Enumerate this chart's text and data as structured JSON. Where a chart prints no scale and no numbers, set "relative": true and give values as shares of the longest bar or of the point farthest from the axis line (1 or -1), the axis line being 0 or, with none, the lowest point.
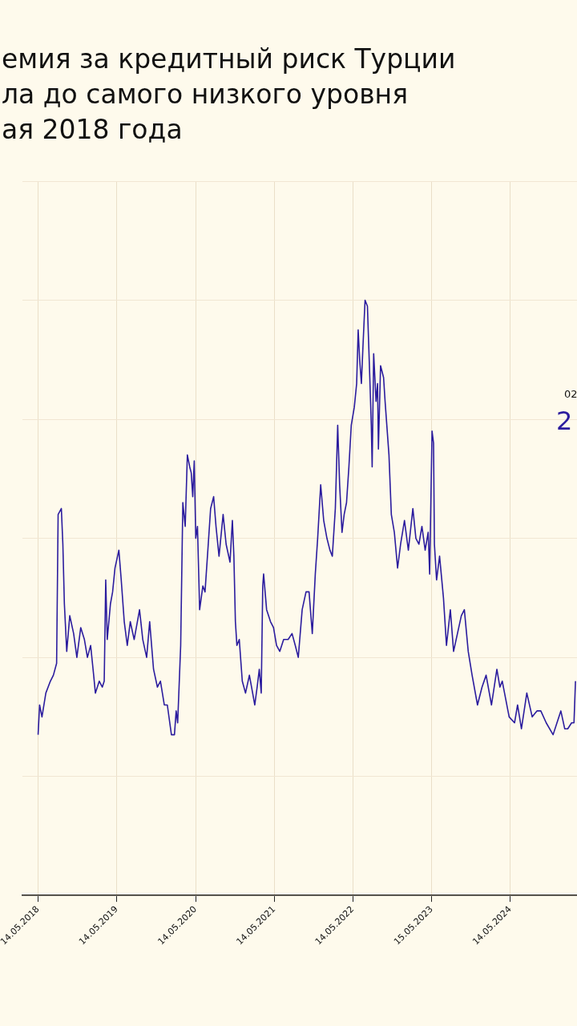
{
  "chart_data": {
    "type": "line",
    "title": "емия за кредитный риск Турции\nла до самого низкого уровня\nая 2018 года",
    "relative": true,
    "grid": true,
    "legend": false,
    "marker": "none",
    "line_style": "solid",
    "xlim": [
      "2018-03-03",
      "2025-03-20"
    ],
    "xticks": [
      {
        "value": "2018-05-14",
        "label": "14.05.2018"
      },
      {
        "value": "2019-05-14",
        "label": "14.05.2019"
      },
      {
        "value": "2020-05-14",
        "label": "14.05.2020"
      },
      {
        "value": "2021-05-14",
        "label": "14.05.2021"
      },
      {
        "value": "2022-05-14",
        "label": "14.05.2022"
      },
      {
        "value": "2023-05-15",
        "label": "15.05.2023"
      },
      {
        "value": "2024-05-14",
        "label": "14.05.2024"
      }
    ],
    "annotations": [
      "02",
      "2"
    ],
    "series": [
      {
        "color": "#2b1c9e",
        "x": [
          "2018-05-14",
          "2018-05-21",
          "2018-06-01",
          "2018-06-19",
          "2018-07-10",
          "2018-07-24",
          "2018-08-08",
          "2018-08-15",
          "2018-08-30",
          "2018-09-06",
          "2018-09-13",
          "2018-09-24",
          "2018-10-08",
          "2018-10-26",
          "2018-11-10",
          "2018-11-28",
          "2018-12-15",
          "2018-12-29",
          "2019-01-13",
          "2019-01-27",
          "2019-02-04",
          "2019-02-22",
          "2019-03-08",
          "2019-03-17",
          "2019-03-24",
          "2019-03-31",
          "2019-04-15",
          "2019-04-25",
          "2019-05-06",
          "2019-05-24",
          "2019-06-04",
          "2019-06-18",
          "2019-07-02",
          "2019-07-16",
          "2019-08-03",
          "2019-08-28",
          "2019-09-12",
          "2019-09-30",
          "2019-10-14",
          "2019-11-01",
          "2019-11-19",
          "2019-12-03",
          "2019-12-21",
          "2020-01-04",
          "2020-01-23",
          "2020-02-06",
          "2020-02-14",
          "2020-02-21",
          "2020-03-06",
          "2020-03-16",
          "2020-03-27",
          "2020-04-06",
          "2020-04-17",
          "2020-04-24",
          "2020-05-01",
          "2020-05-08",
          "2020-05-15",
          "2020-05-23",
          "2020-06-02",
          "2020-06-17",
          "2020-06-27",
          "2020-07-12",
          "2020-07-23",
          "2020-08-06",
          "2020-08-17",
          "2020-08-31",
          "2020-09-19",
          "2020-10-03",
          "2020-10-21",
          "2020-11-01",
          "2020-11-08",
          "2020-11-15",
          "2020-11-22",
          "2020-12-03",
          "2020-12-17",
          "2021-01-01",
          "2021-01-19",
          "2021-01-29",
          "2021-02-13",
          "2021-02-24",
          "2021-03-06",
          "2021-03-15",
          "2021-03-22",
          "2021-03-26",
          "2021-04-09",
          "2021-04-27",
          "2021-05-11",
          "2021-05-25",
          "2021-06-09",
          "2021-06-27",
          "2021-07-18",
          "2021-08-05",
          "2021-08-20",
          "2021-09-03",
          "2021-09-21",
          "2021-10-09",
          "2021-10-23",
          "2021-11-07",
          "2021-11-21",
          "2021-12-02",
          "2021-12-16",
          "2021-12-30",
          "2022-01-14",
          "2022-01-28",
          "2022-02-08",
          "2022-02-22",
          "2022-03-05",
          "2022-03-14",
          "2022-03-25",
          "2022-04-04",
          "2022-04-15",
          "2022-04-26",
          "2022-05-07",
          "2022-05-21",
          "2022-06-01",
          "2022-06-08",
          "2022-06-15",
          "2022-06-23",
          "2022-06-30",
          "2022-07-10",
          "2022-07-21",
          "2022-08-01",
          "2022-08-08",
          "2022-08-12",
          "2022-08-19",
          "2022-08-30",
          "2022-09-06",
          "2022-09-10",
          "2022-09-20",
          "2022-10-04",
          "2022-10-11",
          "2022-10-29",
          "2022-11-09",
          "2022-11-23",
          "2022-12-08",
          "2022-12-22",
          "2023-01-09",
          "2023-01-27",
          "2023-02-17",
          "2023-03-03",
          "2023-03-17",
          "2023-03-31",
          "2023-04-15",
          "2023-04-29",
          "2023-05-06",
          "2023-05-17",
          "2023-05-24",
          "2023-05-28",
          "2023-06-07",
          "2023-06-21",
          "2023-07-09",
          "2023-07-23",
          "2023-08-10",
          "2023-08-25",
          "2023-09-12",
          "2023-09-30",
          "2023-10-14",
          "2023-11-01",
          "2023-11-19",
          "2023-12-14",
          "2024-01-04",
          "2024-01-23",
          "2024-02-17",
          "2024-03-13",
          "2024-03-27",
          "2024-04-07",
          "2024-05-09",
          "2024-06-03",
          "2024-06-17",
          "2024-07-05",
          "2024-07-30",
          "2024-08-24",
          "2024-09-15",
          "2024-10-03",
          "2024-10-28",
          "2024-11-29",
          "2024-12-17",
          "2025-01-04",
          "2025-01-22",
          "2025-02-05",
          "2025-02-23",
          "2025-03-06",
          "2025-03-13"
        ],
        "values": [
          0.27,
          0.32,
          0.3,
          0.34,
          0.36,
          0.37,
          0.39,
          0.64,
          0.65,
          0.59,
          0.49,
          0.41,
          0.47,
          0.44,
          0.4,
          0.45,
          0.43,
          0.4,
          0.42,
          0.37,
          0.34,
          0.36,
          0.35,
          0.36,
          0.53,
          0.43,
          0.49,
          0.51,
          0.55,
          0.58,
          0.53,
          0.46,
          0.42,
          0.46,
          0.43,
          0.48,
          0.43,
          0.4,
          0.46,
          0.38,
          0.35,
          0.36,
          0.32,
          0.32,
          0.27,
          0.27,
          0.31,
          0.29,
          0.42,
          0.66,
          0.62,
          0.74,
          0.72,
          0.71,
          0.67,
          0.73,
          0.6,
          0.62,
          0.48,
          0.52,
          0.51,
          0.59,
          0.65,
          0.67,
          0.62,
          0.57,
          0.64,
          0.59,
          0.56,
          0.63,
          0.57,
          0.46,
          0.42,
          0.43,
          0.36,
          0.34,
          0.37,
          0.35,
          0.32,
          0.35,
          0.38,
          0.34,
          0.52,
          0.54,
          0.48,
          0.46,
          0.45,
          0.42,
          0.41,
          0.43,
          0.43,
          0.44,
          0.42,
          0.4,
          0.48,
          0.51,
          0.51,
          0.44,
          0.54,
          0.6,
          0.69,
          0.63,
          0.6,
          0.58,
          0.57,
          0.65,
          0.79,
          0.69,
          0.61,
          0.64,
          0.66,
          0.72,
          0.79,
          0.82,
          0.86,
          0.95,
          0.9,
          0.86,
          0.92,
          1.0,
          0.99,
          0.87,
          0.79,
          0.72,
          0.91,
          0.83,
          0.86,
          0.75,
          0.89,
          0.87,
          0.83,
          0.74,
          0.64,
          0.61,
          0.55,
          0.59,
          0.63,
          0.58,
          0.65,
          0.6,
          0.59,
          0.62,
          0.58,
          0.61,
          0.54,
          0.78,
          0.76,
          0.59,
          0.53,
          0.57,
          0.5,
          0.42,
          0.48,
          0.41,
          0.44,
          0.47,
          0.48,
          0.41,
          0.37,
          0.32,
          0.35,
          0.37,
          0.32,
          0.38,
          0.35,
          0.36,
          0.3,
          0.29,
          0.32,
          0.28,
          0.34,
          0.3,
          0.31,
          0.31,
          0.29,
          0.27,
          0.29,
          0.31,
          0.28,
          0.28,
          0.29,
          0.29,
          0.36
        ]
      }
    ]
  }
}
